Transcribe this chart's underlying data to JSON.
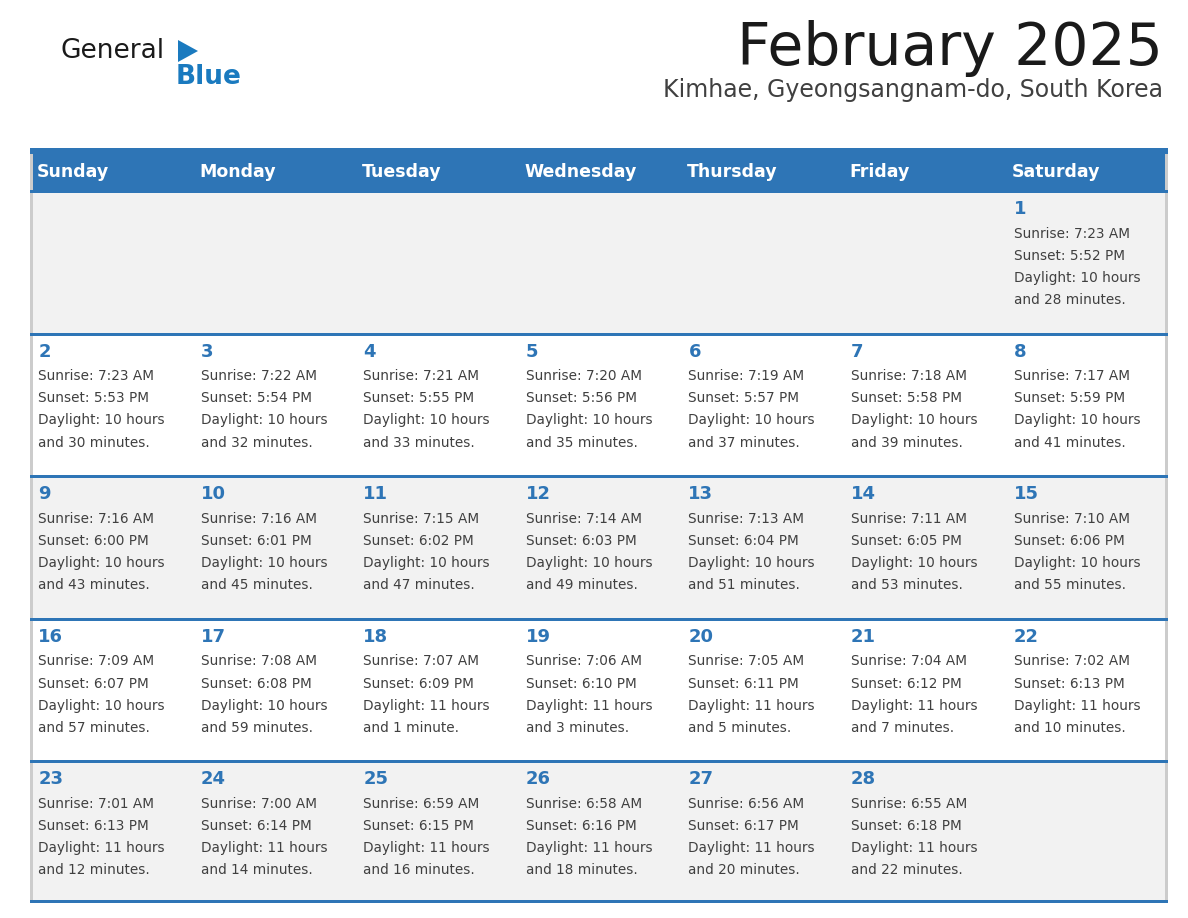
{
  "title": "February 2025",
  "subtitle": "Kimhae, Gyeongsangnam-do, South Korea",
  "days_of_week": [
    "Sunday",
    "Monday",
    "Tuesday",
    "Wednesday",
    "Thursday",
    "Friday",
    "Saturday"
  ],
  "header_bg": "#2e75b6",
  "header_text": "#ffffff",
  "cell_bg_light": "#f2f2f2",
  "cell_bg_white": "#ffffff",
  "cell_text_color": "#404040",
  "day_num_color": "#2e75b6",
  "divider_color": "#2e75b6",
  "logo_black": "#1a1a1a",
  "logo_blue": "#1a7abf",
  "title_color": "#1a1a1a",
  "subtitle_color": "#404040",
  "calendar": [
    [
      null,
      null,
      null,
      null,
      null,
      null,
      {
        "day": "1",
        "sunrise": "7:23 AM",
        "sunset": "5:52 PM",
        "daylight": "10 hours",
        "daylight2": "and 28 minutes."
      }
    ],
    [
      {
        "day": "2",
        "sunrise": "7:23 AM",
        "sunset": "5:53 PM",
        "daylight": "10 hours",
        "daylight2": "and 30 minutes."
      },
      {
        "day": "3",
        "sunrise": "7:22 AM",
        "sunset": "5:54 PM",
        "daylight": "10 hours",
        "daylight2": "and 32 minutes."
      },
      {
        "day": "4",
        "sunrise": "7:21 AM",
        "sunset": "5:55 PM",
        "daylight": "10 hours",
        "daylight2": "and 33 minutes."
      },
      {
        "day": "5",
        "sunrise": "7:20 AM",
        "sunset": "5:56 PM",
        "daylight": "10 hours",
        "daylight2": "and 35 minutes."
      },
      {
        "day": "6",
        "sunrise": "7:19 AM",
        "sunset": "5:57 PM",
        "daylight": "10 hours",
        "daylight2": "and 37 minutes."
      },
      {
        "day": "7",
        "sunrise": "7:18 AM",
        "sunset": "5:58 PM",
        "daylight": "10 hours",
        "daylight2": "and 39 minutes."
      },
      {
        "day": "8",
        "sunrise": "7:17 AM",
        "sunset": "5:59 PM",
        "daylight": "10 hours",
        "daylight2": "and 41 minutes."
      }
    ],
    [
      {
        "day": "9",
        "sunrise": "7:16 AM",
        "sunset": "6:00 PM",
        "daylight": "10 hours",
        "daylight2": "and 43 minutes."
      },
      {
        "day": "10",
        "sunrise": "7:16 AM",
        "sunset": "6:01 PM",
        "daylight": "10 hours",
        "daylight2": "and 45 minutes."
      },
      {
        "day": "11",
        "sunrise": "7:15 AM",
        "sunset": "6:02 PM",
        "daylight": "10 hours",
        "daylight2": "and 47 minutes."
      },
      {
        "day": "12",
        "sunrise": "7:14 AM",
        "sunset": "6:03 PM",
        "daylight": "10 hours",
        "daylight2": "and 49 minutes."
      },
      {
        "day": "13",
        "sunrise": "7:13 AM",
        "sunset": "6:04 PM",
        "daylight": "10 hours",
        "daylight2": "and 51 minutes."
      },
      {
        "day": "14",
        "sunrise": "7:11 AM",
        "sunset": "6:05 PM",
        "daylight": "10 hours",
        "daylight2": "and 53 minutes."
      },
      {
        "day": "15",
        "sunrise": "7:10 AM",
        "sunset": "6:06 PM",
        "daylight": "10 hours",
        "daylight2": "and 55 minutes."
      }
    ],
    [
      {
        "day": "16",
        "sunrise": "7:09 AM",
        "sunset": "6:07 PM",
        "daylight": "10 hours",
        "daylight2": "and 57 minutes."
      },
      {
        "day": "17",
        "sunrise": "7:08 AM",
        "sunset": "6:08 PM",
        "daylight": "10 hours",
        "daylight2": "and 59 minutes."
      },
      {
        "day": "18",
        "sunrise": "7:07 AM",
        "sunset": "6:09 PM",
        "daylight": "11 hours",
        "daylight2": "and 1 minute."
      },
      {
        "day": "19",
        "sunrise": "7:06 AM",
        "sunset": "6:10 PM",
        "daylight": "11 hours",
        "daylight2": "and 3 minutes."
      },
      {
        "day": "20",
        "sunrise": "7:05 AM",
        "sunset": "6:11 PM",
        "daylight": "11 hours",
        "daylight2": "and 5 minutes."
      },
      {
        "day": "21",
        "sunrise": "7:04 AM",
        "sunset": "6:12 PM",
        "daylight": "11 hours",
        "daylight2": "and 7 minutes."
      },
      {
        "day": "22",
        "sunrise": "7:02 AM",
        "sunset": "6:13 PM",
        "daylight": "11 hours",
        "daylight2": "and 10 minutes."
      }
    ],
    [
      {
        "day": "23",
        "sunrise": "7:01 AM",
        "sunset": "6:13 PM",
        "daylight": "11 hours",
        "daylight2": "and 12 minutes."
      },
      {
        "day": "24",
        "sunrise": "7:00 AM",
        "sunset": "6:14 PM",
        "daylight": "11 hours",
        "daylight2": "and 14 minutes."
      },
      {
        "day": "25",
        "sunrise": "6:59 AM",
        "sunset": "6:15 PM",
        "daylight": "11 hours",
        "daylight2": "and 16 minutes."
      },
      {
        "day": "26",
        "sunrise": "6:58 AM",
        "sunset": "6:16 PM",
        "daylight": "11 hours",
        "daylight2": "and 18 minutes."
      },
      {
        "day": "27",
        "sunrise": "6:56 AM",
        "sunset": "6:17 PM",
        "daylight": "11 hours",
        "daylight2": "and 20 minutes."
      },
      {
        "day": "28",
        "sunrise": "6:55 AM",
        "sunset": "6:18 PM",
        "daylight": "11 hours",
        "daylight2": "and 22 minutes."
      },
      null
    ]
  ]
}
